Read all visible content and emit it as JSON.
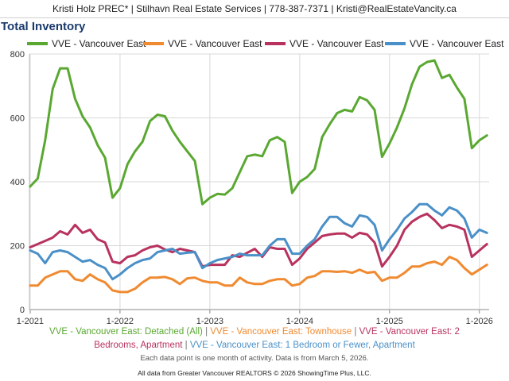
{
  "header": {
    "text": "Kristi Holz PREC* | Stilhavn Real Estate Services | 778-387-7371 | Kristi@RealEstateVancity.ca"
  },
  "chart_data": {
    "type": "line",
    "title": "Total Inventory",
    "xlabel": "",
    "ylabel": "",
    "ylim": [
      0,
      800
    ],
    "yticks": [
      0,
      200,
      400,
      600,
      800
    ],
    "x_start": "2021-01",
    "x_ticks": [
      {
        "index": 0,
        "label": "1-2021"
      },
      {
        "index": 12,
        "label": "1-2022"
      },
      {
        "index": 24,
        "label": "1-2023"
      },
      {
        "index": 36,
        "label": "1-2024"
      },
      {
        "index": 48,
        "label": "1-2025"
      },
      {
        "index": 60,
        "label": "1-2026"
      }
    ],
    "grid": true,
    "series": [
      {
        "name": "VVE - Vancouver East",
        "category": "Detached (All)",
        "color": "#5aa832",
        "values": [
          385,
          410,
          530,
          690,
          755,
          755,
          660,
          605,
          570,
          515,
          475,
          350,
          380,
          455,
          495,
          525,
          590,
          610,
          605,
          560,
          525,
          495,
          465,
          330,
          350,
          362,
          360,
          380,
          430,
          480,
          485,
          480,
          530,
          540,
          525,
          365,
          400,
          415,
          440,
          540,
          580,
          615,
          625,
          620,
          665,
          655,
          625,
          478,
          520,
          570,
          630,
          705,
          760,
          775,
          780,
          725,
          735,
          695,
          660,
          505,
          530,
          545
        ],
        "legend_sub_label": "VVE - Vancouver East: Detached (All)"
      },
      {
        "name": "VVE - Vancouver East",
        "category": "Townhouse",
        "color": "#f08a30",
        "values": [
          75,
          75,
          100,
          110,
          120,
          120,
          95,
          90,
          110,
          95,
          85,
          60,
          55,
          55,
          65,
          85,
          100,
          100,
          102,
          95,
          80,
          98,
          100,
          90,
          85,
          85,
          75,
          75,
          100,
          85,
          80,
          80,
          90,
          95,
          95,
          75,
          80,
          100,
          105,
          120,
          120,
          118,
          120,
          115,
          125,
          115,
          118,
          90,
          100,
          100,
          115,
          135,
          135,
          145,
          150,
          140,
          165,
          155,
          130,
          110,
          125,
          140
        ],
        "legend_sub_label": "VVE - Vancouver East: Townhouse"
      },
      {
        "name": "VVE - Vancouver East",
        "category": "2 Bedrooms, Apartment",
        "color": "#b8325e",
        "values": [
          195,
          205,
          215,
          225,
          245,
          235,
          265,
          240,
          250,
          220,
          210,
          150,
          145,
          165,
          170,
          185,
          195,
          200,
          188,
          180,
          190,
          185,
          180,
          135,
          140,
          140,
          140,
          170,
          165,
          178,
          190,
          165,
          195,
          190,
          190,
          140,
          160,
          190,
          210,
          230,
          235,
          238,
          238,
          225,
          240,
          235,
          210,
          135,
          165,
          200,
          250,
          275,
          290,
          300,
          280,
          255,
          265,
          260,
          250,
          165,
          185,
          205
        ],
        "legend_sub_label": "VVE - Vancouver East: 2 Bedrooms, Apartment"
      },
      {
        "name": "VVE - Vancouver East",
        "category": "1 Bedroom or Fewer, Apartment",
        "color": "#4a90c8",
        "values": [
          185,
          175,
          145,
          180,
          185,
          180,
          165,
          150,
          155,
          140,
          130,
          95,
          110,
          130,
          145,
          155,
          160,
          180,
          185,
          190,
          175,
          178,
          180,
          130,
          145,
          155,
          160,
          165,
          175,
          170,
          170,
          170,
          200,
          220,
          220,
          175,
          175,
          200,
          220,
          260,
          290,
          290,
          270,
          260,
          295,
          290,
          265,
          185,
          220,
          250,
          285,
          305,
          330,
          330,
          310,
          295,
          320,
          310,
          285,
          225,
          250,
          240
        ],
        "legend_sub_label": "VVE - Vancouver East: 1 Bedroom or Fewer, Apartment"
      }
    ]
  },
  "captions": {
    "legend_line1_seg3": "VVE - Vancouver East: 2",
    "legend_line2_seg1": "Bedrooms, Apartment",
    "separator": " | ",
    "note": "Each data point is one month of activity. Data is from March 5, 2026.",
    "source": "All data from Greater Vancouver REALTORS © 2026 ShowingTime Plus, LLC."
  }
}
